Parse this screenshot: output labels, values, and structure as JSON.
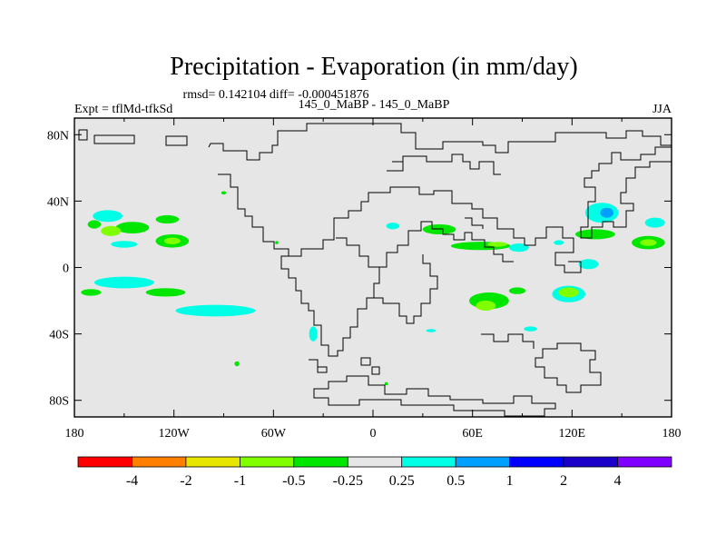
{
  "chart_data": {
    "type": "map",
    "title": "Precipitation - Evaporation (in mm/day)",
    "stats": "rmsd= 0.142104 diff= -0.000451876",
    "left_label": "Expt = tflMd-tfkSd",
    "center_label": "145_0_MaBP - 145_0_MaBP",
    "right_label": "JJA",
    "x_ticks": [
      "180",
      "120W",
      "60W",
      "0",
      "60E",
      "120E",
      "180"
    ],
    "x_values": [
      -180,
      -120,
      -60,
      0,
      60,
      120,
      180
    ],
    "y_ticks": [
      "80N",
      "40N",
      "0",
      "40S",
      "80S"
    ],
    "y_values": [
      80,
      40,
      0,
      -40,
      -80
    ],
    "xlim": [
      -180,
      180
    ],
    "ylim": [
      -90,
      90
    ],
    "colorbar": {
      "labels": [
        "-4",
        "-2",
        "-1",
        "-0.5",
        "-0.25",
        "0.25",
        "0.5",
        "1",
        "2",
        "4"
      ],
      "colors": [
        "#ff0000",
        "#ff8000",
        "#e6e600",
        "#80ff00",
        "#00e600",
        "#e6e6e6",
        "#00ffe6",
        "#00a0ff",
        "#0000ff",
        "#1a00c8",
        "#8000ff"
      ]
    },
    "background_color": "#e6e6e6",
    "contour_patches": [
      {
        "lon": -160,
        "lat": 31,
        "rlon": 9,
        "rlat": 3.5,
        "color": "#00ffe6"
      },
      {
        "lon": -145,
        "lat": 24,
        "rlon": 10,
        "rlat": 3.5,
        "color": "#00e600"
      },
      {
        "lon": -158,
        "lat": 22,
        "rlon": 6,
        "rlat": 3,
        "color": "#80ff00"
      },
      {
        "lon": -124,
        "lat": 29,
        "rlon": 7,
        "rlat": 2.5,
        "color": "#00e600"
      },
      {
        "lon": -168,
        "lat": 26,
        "rlon": 4,
        "rlat": 2.5,
        "color": "#00e600"
      },
      {
        "lon": -150,
        "lat": 14,
        "rlon": 8,
        "rlat": 2,
        "color": "#00ffe6"
      },
      {
        "lon": -121,
        "lat": 16,
        "rlon": 10,
        "rlat": 4,
        "color": "#00e600"
      },
      {
        "lon": -121,
        "lat": 16,
        "rlon": 5,
        "rlat": 2,
        "color": "#80ff00"
      },
      {
        "lon": -150,
        "lat": -9,
        "rlon": 18,
        "rlat": 3.5,
        "color": "#00ffe6"
      },
      {
        "lon": -125,
        "lat": -15,
        "rlon": 12,
        "rlat": 2.5,
        "color": "#00e600"
      },
      {
        "lon": -95,
        "lat": -26,
        "rlon": 24,
        "rlat": 3.5,
        "color": "#00ffe6"
      },
      {
        "lon": -170,
        "lat": -15,
        "rlon": 6,
        "rlat": 2,
        "color": "#00e600"
      },
      {
        "lon": -36,
        "lat": -40,
        "rlon": 2.5,
        "rlat": 4.5,
        "color": "#00ffe6"
      },
      {
        "lon": -82,
        "lat": -58,
        "rlon": 1.5,
        "rlat": 1.5,
        "color": "#00e600"
      },
      {
        "lon": -90,
        "lat": 45,
        "rlon": 1.5,
        "rlat": 1,
        "color": "#00e600"
      },
      {
        "lon": -58,
        "lat": 15,
        "rlon": 1,
        "rlat": 1,
        "color": "#00e600"
      },
      {
        "lon": 12,
        "lat": 25,
        "rlon": 4,
        "rlat": 2,
        "color": "#00ffe6"
      },
      {
        "lon": 40,
        "lat": 23,
        "rlon": 10,
        "rlat": 3,
        "color": "#00e600"
      },
      {
        "lon": 65,
        "lat": 13,
        "rlon": 18,
        "rlat": 2.5,
        "color": "#00e600"
      },
      {
        "lon": 75,
        "lat": 14,
        "rlon": 6,
        "rlat": 1.5,
        "color": "#80ff00"
      },
      {
        "lon": 88,
        "lat": 12,
        "rlon": 6,
        "rlat": 2.5,
        "color": "#00ffe6"
      },
      {
        "lon": 70,
        "lat": -20,
        "rlon": 12,
        "rlat": 5,
        "color": "#00e600"
      },
      {
        "lon": 68,
        "lat": -23,
        "rlon": 6,
        "rlat": 3,
        "color": "#80ff00"
      },
      {
        "lon": 87,
        "lat": -14,
        "rlon": 5,
        "rlat": 2,
        "color": "#00e600"
      },
      {
        "lon": 118,
        "lat": -16,
        "rlon": 10,
        "rlat": 5,
        "color": "#00ffe6"
      },
      {
        "lon": 118,
        "lat": -15,
        "rlon": 6,
        "rlat": 3,
        "color": "#80ff00"
      },
      {
        "lon": 130,
        "lat": 2,
        "rlon": 6,
        "rlat": 3,
        "color": "#00ffe6"
      },
      {
        "lon": 138,
        "lat": 33,
        "rlon": 10,
        "rlat": 6,
        "color": "#00ffe6"
      },
      {
        "lon": 141,
        "lat": 33,
        "rlon": 4,
        "rlat": 3,
        "color": "#00a0ff"
      },
      {
        "lon": 134,
        "lat": 20,
        "rlon": 12,
        "rlat": 3,
        "color": "#00e600"
      },
      {
        "lon": 166,
        "lat": 15,
        "rlon": 10,
        "rlat": 4,
        "color": "#00e600"
      },
      {
        "lon": 166,
        "lat": 15,
        "rlon": 5,
        "rlat": 2,
        "color": "#80ff00"
      },
      {
        "lon": 170,
        "lat": 27,
        "rlon": 6,
        "rlat": 3,
        "color": "#00ffe6"
      },
      {
        "lon": 95,
        "lat": -37,
        "rlon": 4,
        "rlat": 1.5,
        "color": "#00ffe6"
      },
      {
        "lon": 112,
        "lat": 15,
        "rlon": 3,
        "rlat": 1.5,
        "color": "#00ffe6"
      },
      {
        "lon": 8,
        "lat": -70,
        "rlon": 1,
        "rlat": 1,
        "color": "#00e600"
      },
      {
        "lon": 35,
        "lat": -38,
        "rlon": 3,
        "rlat": 1,
        "color": "#00ffe6"
      }
    ]
  }
}
